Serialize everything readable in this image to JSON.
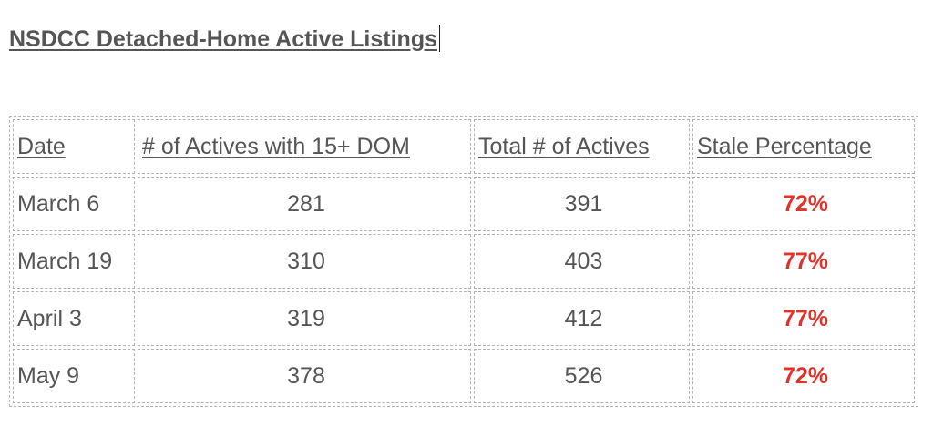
{
  "title": "NSDCC Detached-Home Active Listings",
  "colors": {
    "text": "#555555",
    "stale": "#e0332a",
    "border": "#b3b3b3"
  },
  "table": {
    "headers": [
      "Date",
      "# of Actives with 15+ DOM",
      "Total # of Actives",
      "Stale Percentage"
    ],
    "rows": [
      {
        "date": "March 6",
        "stale_count": "281",
        "total": "391",
        "pct": "72%"
      },
      {
        "date": "March 19",
        "stale_count": "310",
        "total": "403",
        "pct": "77%"
      },
      {
        "date": "April 3",
        "stale_count": "319",
        "total": "412",
        "pct": "77%"
      },
      {
        "date": "May 9",
        "stale_count": "378",
        "total": "526",
        "pct": "72%"
      }
    ]
  }
}
